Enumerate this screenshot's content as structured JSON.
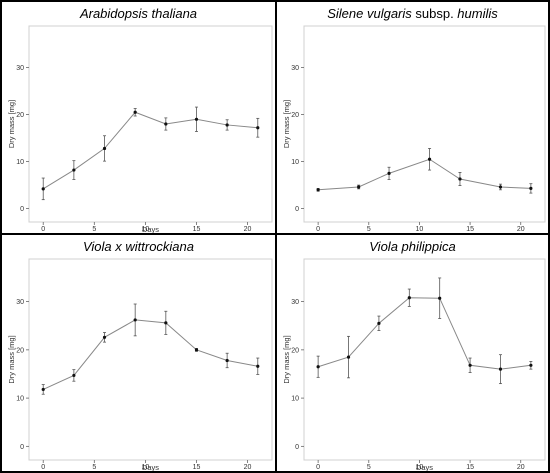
{
  "chart_data": [
    {
      "type": "line",
      "title": "Arabidopsis thaliana",
      "title_parts": [
        {
          "text": "Arabidopsis thaliana",
          "italic": true
        }
      ],
      "xlabel": "Days",
      "ylabel": "Dry mass [mg]",
      "xlim": [
        -1,
        22
      ],
      "ylim": [
        -2,
        38
      ],
      "xticks": [
        0,
        5,
        10,
        15,
        20
      ],
      "yticks": [
        0,
        10,
        20,
        30
      ],
      "grid": false,
      "x": [
        0,
        3,
        6,
        9,
        12,
        15,
        18,
        21
      ],
      "y": [
        4.2,
        8.2,
        12.8,
        20.5,
        18,
        19,
        17.8,
        17.2
      ],
      "yerr": [
        2.3,
        2.0,
        2.7,
        0.8,
        1.3,
        2.6,
        1.1,
        2.0
      ]
    },
    {
      "type": "line",
      "title": "Silene vulgaris subsp. humilis",
      "title_parts": [
        {
          "text": "Silene vulgaris",
          "italic": true
        },
        {
          "text": " subsp. ",
          "italic": false
        },
        {
          "text": "humilis",
          "italic": true
        }
      ],
      "xlabel": "",
      "ylabel": "Dry mass [mg]",
      "xlim": [
        -1,
        22
      ],
      "ylim": [
        -2,
        38
      ],
      "xticks": [
        0,
        5,
        10,
        15,
        20
      ],
      "yticks": [
        0,
        10,
        20,
        30
      ],
      "grid": false,
      "x": [
        0,
        4,
        7,
        11,
        14,
        18,
        21
      ],
      "y": [
        4,
        4.6,
        7.5,
        10.5,
        6.3,
        4.6,
        4.3
      ],
      "yerr": [
        0.3,
        0.4,
        1.3,
        2.3,
        1.4,
        0.6,
        1.0
      ]
    },
    {
      "type": "line",
      "title": "Viola x wittrockiana",
      "title_parts": [
        {
          "text": "Viola x wittrockiana",
          "italic": true
        }
      ],
      "xlabel": "Days",
      "ylabel": "Dry mass [mg]",
      "xlim": [
        -1,
        22
      ],
      "ylim": [
        -2,
        38
      ],
      "xticks": [
        0,
        5,
        10,
        15,
        20
      ],
      "yticks": [
        0,
        10,
        20,
        30
      ],
      "grid": false,
      "x": [
        0,
        3,
        6,
        9,
        12,
        15,
        18,
        21
      ],
      "y": [
        11.8,
        14.7,
        22.6,
        26.2,
        25.6,
        20,
        17.8,
        16.6
      ],
      "yerr": [
        1.0,
        1.2,
        1.0,
        3.3,
        2.4,
        0.3,
        1.5,
        1.7
      ]
    },
    {
      "type": "line",
      "title": "Viola philippica",
      "title_parts": [
        {
          "text": "Viola philippica",
          "italic": true
        }
      ],
      "xlabel": "Days",
      "ylabel": "Dry mass [mg]",
      "xlim": [
        -1,
        22
      ],
      "ylim": [
        -2,
        38
      ],
      "xticks": [
        0,
        5,
        10,
        15,
        20
      ],
      "yticks": [
        0,
        10,
        20,
        30
      ],
      "grid": false,
      "x": [
        0,
        3,
        6,
        9,
        12,
        15,
        18,
        21
      ],
      "y": [
        16.5,
        18.5,
        25.5,
        30.8,
        30.7,
        16.8,
        16,
        16.8
      ],
      "yerr": [
        2.2,
        4.3,
        1.5,
        1.8,
        4.2,
        1.5,
        3.0,
        0.8
      ]
    }
  ]
}
